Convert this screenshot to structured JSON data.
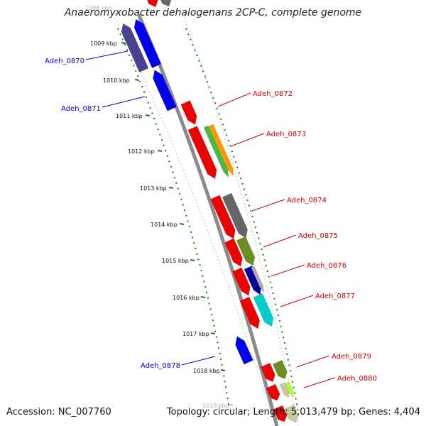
{
  "title": "Anaeromyxobacter dehalogenans 2CP-C, complete genome",
  "footer": {
    "accession": "Accession: NC_007760",
    "summary": "Topology: circular; Length: 5,013,479 bp; Genes: 4,404"
  },
  "colors": {
    "forward_label": "#cc0000",
    "reverse_label": "#0000cc",
    "backbone": "#8a8a8a",
    "tick": "#1a7a1a"
  },
  "kbp_labels": [
    "1008 kbp",
    "1009 kbp",
    "1010 kbp",
    "1011 kbp",
    "1012 kbp",
    "1013 kbp",
    "1014 kbp",
    "1015 kbp",
    "1016 kbp",
    "1017 kbp",
    "1018 kbp",
    "1019 kbp"
  ],
  "genes": [
    {
      "name": "Adeh_0870",
      "strand": "reverse"
    },
    {
      "name": "Adeh_0871",
      "strand": "reverse"
    },
    {
      "name": "Adeh_0872",
      "strand": "forward"
    },
    {
      "name": "Adeh_0873",
      "strand": "forward"
    },
    {
      "name": "Adeh_0874",
      "strand": "forward"
    },
    {
      "name": "Adeh_0875",
      "strand": "forward"
    },
    {
      "name": "Adeh_0876",
      "strand": "forward"
    },
    {
      "name": "Adeh_0877",
      "strand": "forward"
    },
    {
      "name": "Adeh_0878",
      "strand": "reverse"
    },
    {
      "name": "Adeh_0879",
      "strand": "forward"
    },
    {
      "name": "Adeh_0880",
      "strand": "forward"
    }
  ]
}
